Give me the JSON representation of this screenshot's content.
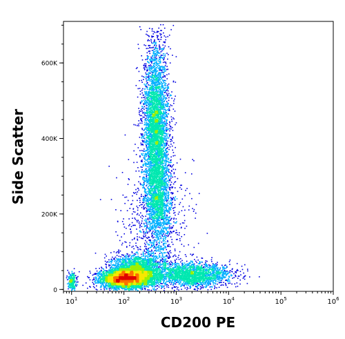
{
  "chart_data": {
    "type": "scatter",
    "subtype": "flow cytometry density dot plot",
    "xlabel": "CD200 PE",
    "ylabel": "Side Scatter",
    "x_scale": "log",
    "xlim": [
      7,
      1000000
    ],
    "ylim": [
      -5000,
      710000
    ],
    "x_ticks": [
      {
        "value": 10,
        "base": "10",
        "exp": "1"
      },
      {
        "value": 100,
        "base": "10",
        "exp": "2"
      },
      {
        "value": 1000,
        "base": "10",
        "exp": "3"
      },
      {
        "value": 10000,
        "base": "10",
        "exp": "4"
      },
      {
        "value": 100000,
        "base": "10",
        "exp": "5"
      },
      {
        "value": 1000000,
        "base": "10",
        "exp": "6"
      }
    ],
    "y_ticks": [
      {
        "value": 0,
        "label": "0"
      },
      {
        "value": 200000,
        "label": "200K"
      },
      {
        "value": 400000,
        "label": "400K"
      },
      {
        "value": 600000,
        "label": "600K"
      }
    ],
    "density_colormap": [
      "#0000e0",
      "#00b0ff",
      "#00e8b0",
      "#9ef000",
      "#f8e800",
      "#ff7000",
      "#e00000"
    ],
    "populations": [
      {
        "x_center": 100,
        "x_log_sd": 0.22,
        "y_center": 30000,
        "y_sd": 12000,
        "n": 4200
      },
      {
        "x_center": 180,
        "x_log_sd": 0.25,
        "y_center": 50000,
        "y_sd": 22000,
        "n": 2600
      },
      {
        "x_center": 400,
        "x_log_sd": 0.12,
        "y_center": 430000,
        "y_sd": 110000,
        "n": 4200
      },
      {
        "x_center": 450,
        "x_log_sd": 0.13,
        "y_center": 240000,
        "y_sd": 70000,
        "n": 1600
      },
      {
        "x_center": 2000,
        "x_log_sd": 0.38,
        "y_center": 40000,
        "y_sd": 16000,
        "n": 2200
      },
      {
        "x_center": 400,
        "x_log_sd": 0.35,
        "y_center": 160000,
        "y_sd": 90000,
        "n": 700
      },
      {
        "x_center": 10,
        "x_log_sd": 0.04,
        "y_center": 20000,
        "y_sd": 12000,
        "n": 250
      }
    ]
  }
}
